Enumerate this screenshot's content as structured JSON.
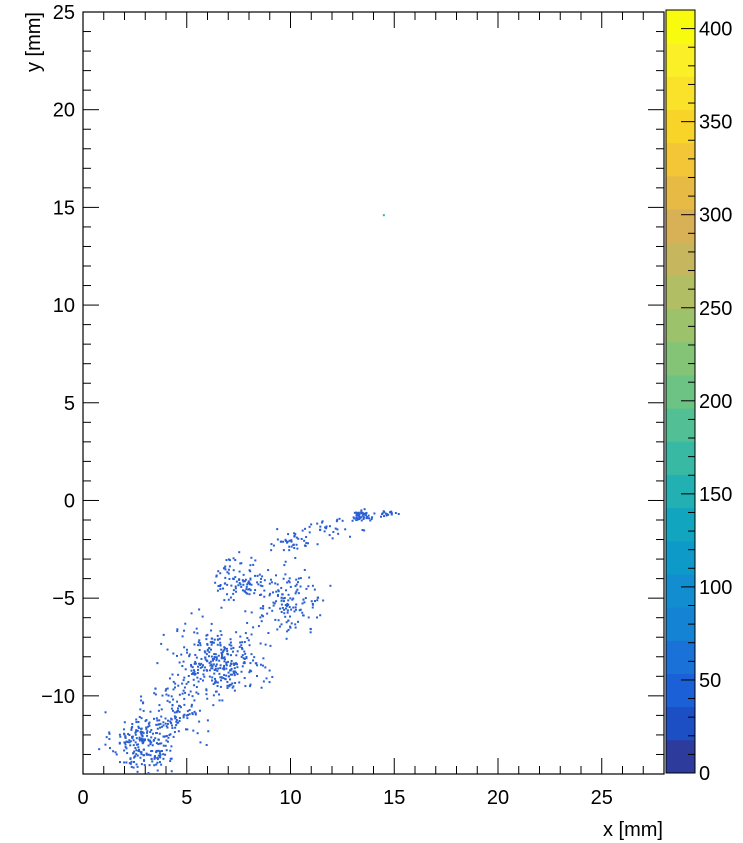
{
  "chart_data": {
    "type": "heatmap",
    "title": "",
    "xlabel": "x [mm]",
    "ylabel": "y [mm]",
    "xlim": [
      0,
      28
    ],
    "ylim": [
      -14,
      25
    ],
    "x_ticks": [
      "0",
      "5",
      "10",
      "15",
      "20",
      "25"
    ],
    "x_tick_values": [
      0,
      5,
      10,
      15,
      20,
      25
    ],
    "y_ticks": [
      "25",
      "20",
      "15",
      "10",
      "5",
      "0",
      "−5",
      "−10"
    ],
    "y_tick_values": [
      25,
      20,
      15,
      10,
      5,
      0,
      -5,
      -10
    ],
    "colorbar": {
      "min": 0,
      "max": 410,
      "ticks": [
        "0",
        "50",
        "100",
        "150",
        "200",
        "250",
        "300",
        "350",
        "400"
      ],
      "tick_values": [
        0,
        50,
        100,
        150,
        200,
        250,
        300,
        350,
        400
      ],
      "palette": [
        "#2c3b9c",
        "#1c4ec4",
        "#1c60d8",
        "#1a72d8",
        "#1583d4",
        "#128ed0",
        "#0e9ac8",
        "#12a5c0",
        "#22b0b2",
        "#38b9a4",
        "#52bf94",
        "#6cc384",
        "#84c476",
        "#9cc26c",
        "#b2be64",
        "#c6b65e",
        "#d8b056",
        "#e6ba44",
        "#f2c636",
        "#f8d428",
        "#fae22a",
        "#fbf028",
        "#f9fb0e"
      ],
      "levels": 23
    },
    "hit_color": "#2a5fd1",
    "outlier_color": "#2ab9a8",
    "hit_regions": [
      {
        "cx": 2.9,
        "cy": -12.4,
        "sx": 0.75,
        "sy": 0.8,
        "n": 230
      },
      {
        "cx": 4.5,
        "cy": -10.8,
        "sx": 0.7,
        "sy": 1.0,
        "n": 120
      },
      {
        "cx": 6.2,
        "cy": -8.3,
        "sx": 0.9,
        "sy": 0.9,
        "n": 230
      },
      {
        "cx": 7.5,
        "cy": -8.2,
        "sx": 0.7,
        "sy": 0.7,
        "n": 90
      },
      {
        "cx": 7.6,
        "cy": -4.0,
        "sx": 0.6,
        "sy": 0.6,
        "n": 100
      },
      {
        "cx": 9.9,
        "cy": -5.2,
        "sx": 0.9,
        "sy": 0.8,
        "n": 150
      },
      {
        "cx": 10.0,
        "cy": -2.2,
        "sx": 0.5,
        "sy": 0.3,
        "n": 40
      },
      {
        "cx": 11.8,
        "cy": -1.4,
        "sx": 0.6,
        "sy": 0.2,
        "n": 30
      },
      {
        "cx": 13.4,
        "cy": -0.8,
        "sx": 0.25,
        "sy": 0.15,
        "n": 60
      },
      {
        "cx": 14.8,
        "cy": -0.65,
        "sx": 0.2,
        "sy": 0.08,
        "n": 18
      }
    ],
    "outliers": [
      {
        "x": 14.5,
        "y": 14.6
      }
    ]
  }
}
